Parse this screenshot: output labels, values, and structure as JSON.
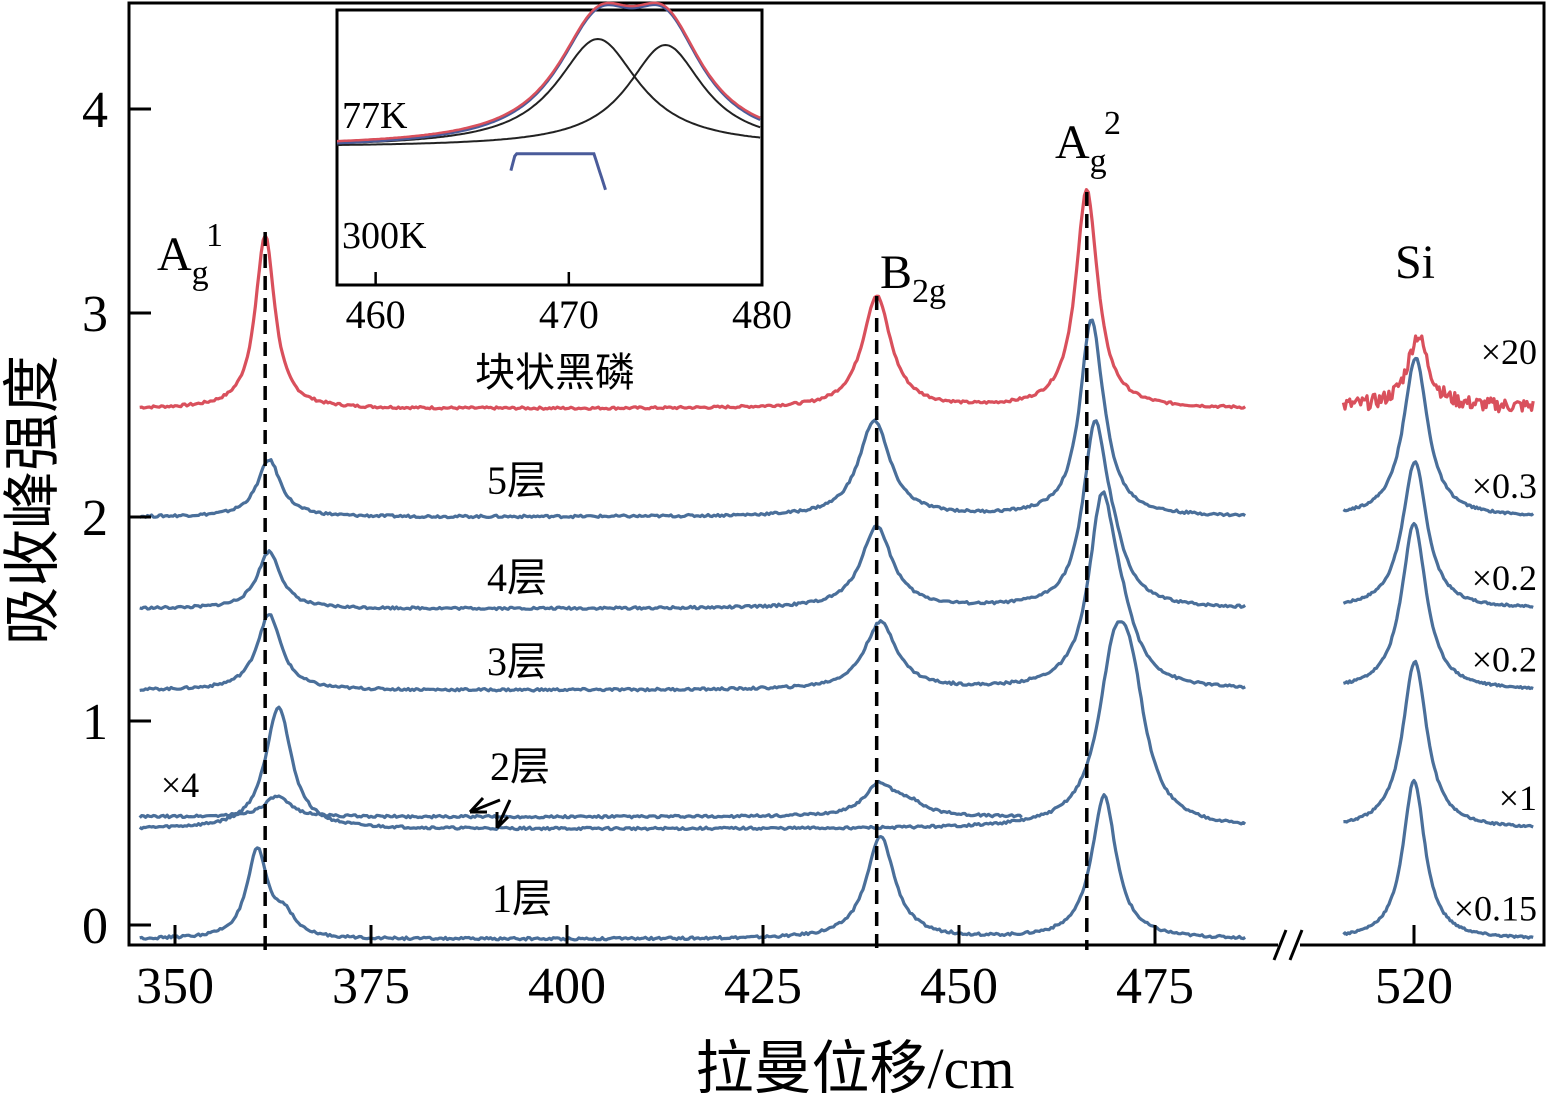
{
  "chart_data": {
    "type": "line",
    "xlabel": "拉曼位移/cm",
    "ylabel": "吸收峰强度",
    "xlim": [
      345,
      535
    ],
    "ylim": [
      -0.1,
      4.5
    ],
    "x_break": [
      487,
      511
    ],
    "x_ticks": [
      350,
      375,
      400,
      425,
      450,
      475,
      520
    ],
    "y_ticks": [
      0,
      1,
      2,
      3,
      4
    ],
    "peak_lines": [
      {
        "x": 361.5,
        "label": "A",
        "sub": "g",
        "sup": "1"
      },
      {
        "x": 439.5,
        "label": "B",
        "sub": "2g",
        "sup": ""
      },
      {
        "x": 466.3,
        "label": "A",
        "sub": "g",
        "sup": "2"
      }
    ],
    "si_label": "Si",
    "series": [
      {
        "name": "块状黑磷",
        "color": "#d9505c",
        "baseline": 2.53,
        "peaks": [
          [
            361.5,
            0.85,
            1.5
          ],
          [
            439.5,
            0.55,
            2.2
          ],
          [
            466.3,
            1.07,
            1.7
          ]
        ],
        "si": {
          "center": 520.5,
          "height": 0.35,
          "width": 1.6,
          "noise": 0.07,
          "scale": "×20"
        }
      },
      {
        "name": "5层",
        "color": "#4a6f9a",
        "baseline": 2.0,
        "peaks": [
          [
            362.0,
            0.28,
            1.8
          ],
          [
            439.2,
            0.47,
            2.4
          ],
          [
            466.8,
            0.85,
            1.7
          ],
          [
            468.0,
            0.15,
            2.0
          ]
        ],
        "si": {
          "center": 520.2,
          "height": 0.78,
          "width": 1.9,
          "noise": 0,
          "scale": "×0.3"
        }
      },
      {
        "name": "4层",
        "color": "#4a6f9a",
        "baseline": 1.55,
        "peaks": [
          [
            362.0,
            0.28,
            1.8
          ],
          [
            439.5,
            0.4,
            2.4
          ],
          [
            467.3,
            0.82,
            1.8
          ],
          [
            469.5,
            0.2,
            2.2
          ]
        ],
        "si": {
          "center": 520.1,
          "height": 0.72,
          "width": 1.9,
          "noise": 0,
          "scale": "×0.2"
        }
      },
      {
        "name": "3层",
        "color": "#4a6f9a",
        "baseline": 1.15,
        "peaks": [
          [
            362.0,
            0.37,
            1.9
          ],
          [
            440.0,
            0.33,
            2.5
          ],
          [
            468.2,
            0.83,
            2.0
          ],
          [
            470.5,
            0.25,
            2.5
          ]
        ],
        "si": {
          "center": 520.0,
          "height": 0.82,
          "width": 1.9,
          "noise": 0,
          "scale": "×0.2"
        }
      },
      {
        "name": "2层",
        "color": "#4a6f9a",
        "baseline": 0.47,
        "peaks": [
          [
            363.2,
            0.6,
            2.0
          ],
          [
            469.8,
            0.72,
            2.5
          ],
          [
            472.0,
            0.5,
            2.3
          ]
        ],
        "si": {
          "center": 520.1,
          "height": 0.82,
          "width": 1.9,
          "noise": 0,
          "scale": "×1"
        }
      },
      {
        "name": "2层 ×4",
        "color": "#4a6f9a",
        "baseline": 0.53,
        "x_end": 458,
        "peaks": [
          [
            363.0,
            0.1,
            2.0
          ],
          [
            439.8,
            0.15,
            2.3
          ],
          [
            443.5,
            0.06,
            2.5
          ]
        ],
        "side_label": "×4"
      },
      {
        "name": "1层",
        "color": "#4a6f9a",
        "baseline": -0.07,
        "peaks": [
          [
            360.5,
            0.43,
            1.6
          ],
          [
            364.0,
            0.1,
            1.5
          ],
          [
            440.0,
            0.5,
            2.2
          ],
          [
            468.5,
            0.7,
            1.9
          ]
        ],
        "si": {
          "center": 520.0,
          "height": 0.78,
          "width": 1.7,
          "noise": 0,
          "scale": "×0.15"
        }
      }
    ],
    "labels": {
      "bulk": "块状黑磷",
      "l5": "5层",
      "l4": "4层",
      "l3": "3层",
      "l2": "2层",
      "l1": "1层",
      "x4": "×4"
    },
    "inset": {
      "xlim": [
        458,
        480
      ],
      "x_ticks": [
        460,
        470,
        480
      ],
      "label_77k": "77K",
      "label_300k": "300K",
      "components": [
        [
          471.5,
          2.6
        ],
        [
          475.0,
          2.4
        ]
      ],
      "colors": [
        "#222222",
        "#d9505c",
        "#4a5b9a"
      ]
    }
  }
}
